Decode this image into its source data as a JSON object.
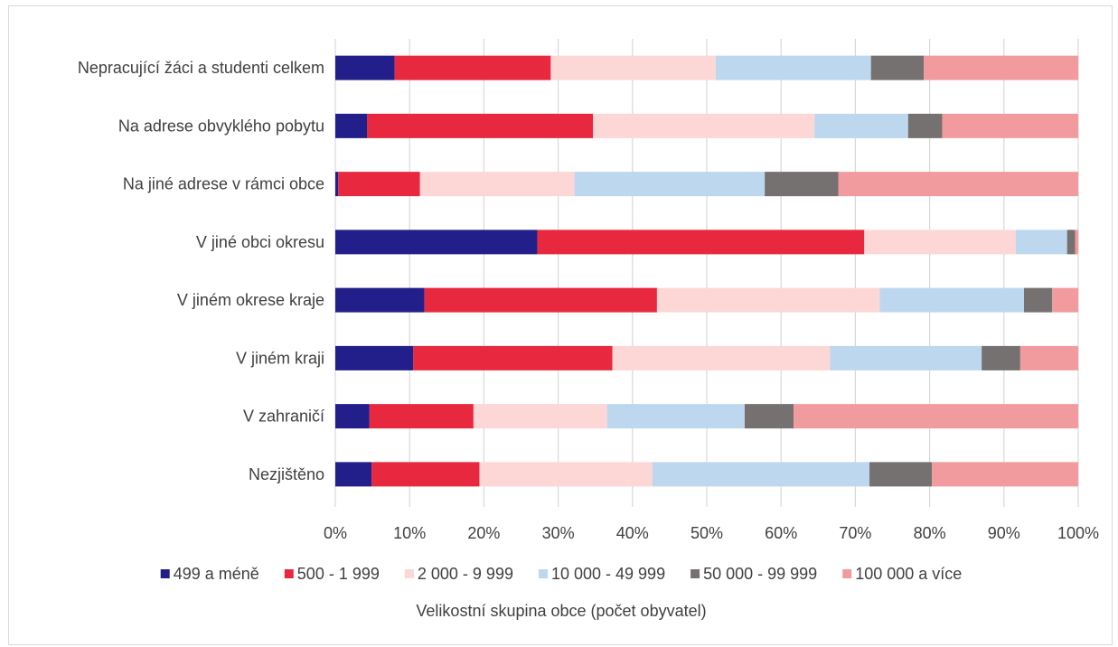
{
  "chart_data": {
    "type": "bar",
    "orientation": "horizontal",
    "stacked": "percent",
    "categories": [
      "Nepracující žáci a studenti celkem",
      "Na adrese obvyklého pobytu",
      "Na jiné adrese v rámci obce",
      "V jiné obci okresu",
      "V jiném okrese kraje",
      "V jiném kraji",
      "V zahraničí",
      "Nezjištěno"
    ],
    "series": [
      {
        "name": "499 a méně",
        "color": "#231f8a",
        "values": [
          8.0,
          4.3,
          0.4,
          27.2,
          12.0,
          10.5,
          4.6,
          4.9
        ]
      },
      {
        "name": "500 - 1 999",
        "color": "#e8283e",
        "values": [
          21.0,
          30.4,
          11.0,
          44.0,
          31.3,
          26.8,
          14.0,
          14.5
        ]
      },
      {
        "name": "2 000 - 9 999",
        "color": "#fdd6d6",
        "values": [
          22.2,
          29.8,
          20.8,
          20.4,
          30.0,
          29.3,
          18.0,
          23.3
        ]
      },
      {
        "name": "10 000 - 49 999",
        "color": "#bdd7ee",
        "values": [
          20.9,
          12.6,
          25.6,
          6.9,
          19.4,
          20.4,
          18.5,
          29.2
        ]
      },
      {
        "name": "50 000 - 99 999",
        "color": "#767171",
        "values": [
          7.1,
          4.6,
          9.9,
          1.1,
          3.8,
          5.2,
          6.6,
          8.4
        ]
      },
      {
        "name": "100 000 a více",
        "color": "#f29b9e",
        "values": [
          20.8,
          18.3,
          32.3,
          0.4,
          3.5,
          7.8,
          38.3,
          19.7
        ]
      }
    ],
    "x_ticks": [
      "0%",
      "10%",
      "20%",
      "30%",
      "40%",
      "50%",
      "60%",
      "70%",
      "80%",
      "90%",
      "100%"
    ],
    "xlim": [
      0,
      100
    ],
    "grid": "vertical",
    "legend_position": "bottom",
    "title": "",
    "xlabel": "Velikostní skupina obce (počet obyvatel)",
    "ylabel": ""
  }
}
